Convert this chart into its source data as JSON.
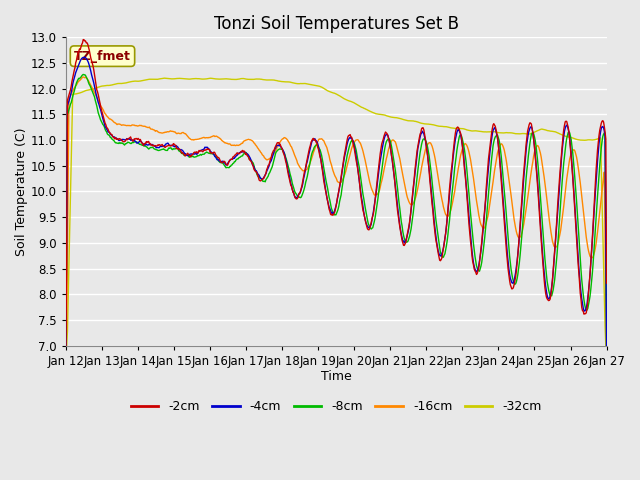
{
  "title": "Tonzi Soil Temperatures Set B",
  "xlabel": "Time",
  "ylabel": "Soil Temperature (C)",
  "ylim": [
    7.0,
    13.0
  ],
  "yticks": [
    7.0,
    7.5,
    8.0,
    8.5,
    9.0,
    9.5,
    10.0,
    10.5,
    11.0,
    11.5,
    12.0,
    12.5,
    13.0
  ],
  "xtick_labels": [
    "Jan 12",
    "Jan 13",
    "Jan 14",
    "Jan 15",
    "Jan 16",
    "Jan 17",
    "Jan 18",
    "Jan 19",
    "Jan 20",
    "Jan 21",
    "Jan 22",
    "Jan 23",
    "Jan 24",
    "Jan 25",
    "Jan 26",
    "Jan 27"
  ],
  "series_colors": [
    "#cc0000",
    "#0000cc",
    "#00bb00",
    "#ff8800",
    "#cccc00"
  ],
  "series_labels": [
    "-2cm",
    "-4cm",
    "-8cm",
    "-16cm",
    "-32cm"
  ],
  "legend_label": "TZ_fmet",
  "legend_label_color": "#8b0000",
  "legend_bg_color": "#ffffcc",
  "plot_bg_color": "#e8e8e8",
  "grid_color": "#ffffff",
  "title_fontsize": 12,
  "axis_label_fontsize": 9,
  "tick_fontsize": 8.5,
  "figsize": [
    6.4,
    4.8
  ],
  "dpi": 100
}
